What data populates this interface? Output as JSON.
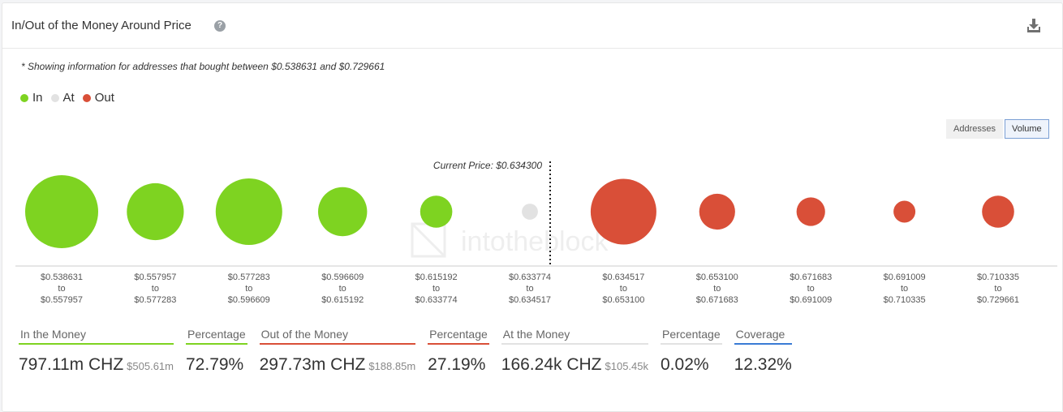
{
  "header": {
    "title": "In/Out of the Money Around Price"
  },
  "icons": {
    "help": "question-circle-icon",
    "download": "download-icon"
  },
  "note": "* Showing information for addresses that bought between $0.538631 and $0.729661",
  "legend": [
    {
      "label": "In",
      "color": "#7ed321"
    },
    {
      "label": "At",
      "color": "#e2e2e2"
    },
    {
      "label": "Out",
      "color": "#d94f38"
    }
  ],
  "toggle": {
    "addresses": "Addresses",
    "volume": "Volume",
    "selected": "Volume"
  },
  "watermark": "intotheblock",
  "chart_data": {
    "type": "bubble",
    "current_price_label": "Current Price: $0.634300",
    "current_price": 0.6343,
    "buckets": [
      {
        "from": "$0.538631",
        "to_word": "to",
        "to": "$0.557957",
        "status": "in",
        "relative_size": 1.0
      },
      {
        "from": "$0.557957",
        "to_word": "to",
        "to": "$0.577283",
        "status": "in",
        "relative_size": 0.78
      },
      {
        "from": "$0.577283",
        "to_word": "to",
        "to": "$0.596609",
        "status": "in",
        "relative_size": 0.91
      },
      {
        "from": "$0.596609",
        "to_word": "to",
        "to": "$0.615192",
        "status": "in",
        "relative_size": 0.67
      },
      {
        "from": "$0.615192",
        "to_word": "to",
        "to": "$0.633774",
        "status": "in",
        "relative_size": 0.44
      },
      {
        "from": "$0.633774",
        "to_word": "to",
        "to": "$0.634517",
        "status": "at",
        "relative_size": 0.22
      },
      {
        "from": "$0.634517",
        "to_word": "to",
        "to": "$0.653100",
        "status": "out",
        "relative_size": 0.9
      },
      {
        "from": "$0.653100",
        "to_word": "to",
        "to": "$0.671683",
        "status": "out",
        "relative_size": 0.49
      },
      {
        "from": "$0.671683",
        "to_word": "to",
        "to": "$0.691009",
        "status": "out",
        "relative_size": 0.39
      },
      {
        "from": "$0.691009",
        "to_word": "to",
        "to": "$0.710335",
        "status": "out",
        "relative_size": 0.3
      },
      {
        "from": "$0.710335",
        "to_word": "to",
        "to": "$0.729661",
        "status": "out",
        "relative_size": 0.44
      }
    ]
  },
  "stats": [
    {
      "label": "In the Money",
      "value": "797.11m CHZ",
      "sub": "$505.61m",
      "color": "#7ed321"
    },
    {
      "label": "Percentage",
      "value": "72.79%",
      "sub": "",
      "color": "#7ed321"
    },
    {
      "label": "Out of the Money",
      "value": "297.73m CHZ",
      "sub": "$188.85m",
      "color": "#d94f38"
    },
    {
      "label": "Percentage",
      "value": "27.19%",
      "sub": "",
      "color": "#d94f38"
    },
    {
      "label": "At the Money",
      "value": "166.24k CHZ",
      "sub": "$105.45k",
      "color": "#e2e2e2"
    },
    {
      "label": "Percentage",
      "value": "0.02%",
      "sub": "",
      "color": "#e2e2e2"
    },
    {
      "label": "Coverage",
      "value": "12.32%",
      "sub": "",
      "color": "#3a7bd5"
    }
  ]
}
